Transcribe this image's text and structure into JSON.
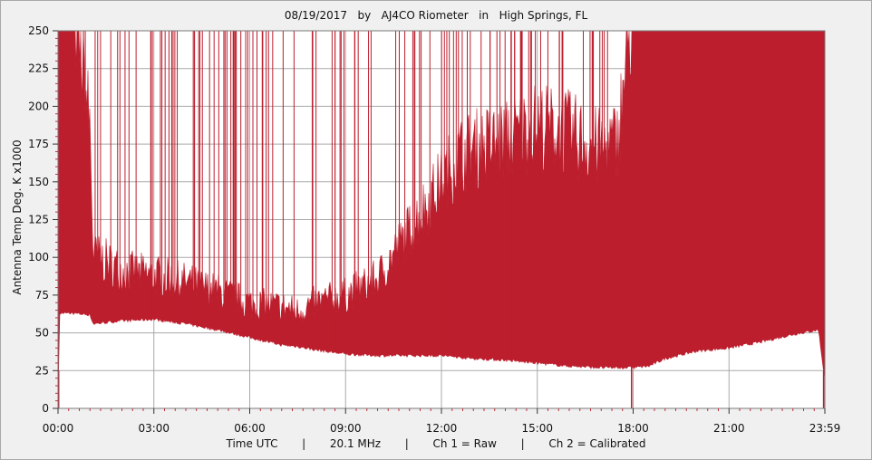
{
  "title": "08/19/2017   by   AJ4CO Riometer   in   High Springs, FL",
  "footer": "Time UTC       |       20.1 MHz       |       Ch 1 = Raw       |       Ch 2 = Calibrated",
  "colors": {
    "series": "#bc1e2d",
    "grid": "#a9a9a9",
    "plot_background": "#ffffff",
    "window": "#f0f0f0",
    "minor_tick": "#c03040"
  },
  "chart_data": {
    "type": "area",
    "title": "08/19/2017   by   AJ4CO Riometer   in   High Springs, FL",
    "xlabel": "Time UTC",
    "ylabel": "Antenna Temp Deg. K x1000",
    "xlim": [
      0,
      24
    ],
    "ylim": [
      0,
      250
    ],
    "x_ticks": [
      "00:00",
      "03:00",
      "06:00",
      "09:00",
      "12:00",
      "15:00",
      "18:00",
      "21:00",
      "23:59"
    ],
    "y_ticks": [
      0,
      25,
      50,
      75,
      100,
      125,
      150,
      175,
      200,
      225,
      250
    ],
    "grid": true,
    "legend": "none",
    "series": [
      {
        "name": "Ch 1 = Raw",
        "x_hours": [
          0,
          0.05,
          0.5,
          1,
          1.1,
          2,
          3,
          4,
          5,
          6,
          7,
          7.5,
          8,
          9,
          10,
          11,
          12,
          12.5,
          13,
          14,
          15,
          16,
          17,
          17.5,
          18,
          18.5,
          19,
          20,
          21,
          22,
          23,
          23.8,
          23.99
        ],
        "lower": [
          0,
          63,
          63,
          62,
          56,
          58,
          59,
          56,
          52,
          47,
          42,
          41,
          39,
          36,
          35,
          35,
          35,
          34,
          33,
          32,
          30,
          28,
          27,
          27,
          27,
          28,
          33,
          38,
          40,
          44,
          49,
          52,
          20
        ],
        "upper": [
          250,
          250,
          250,
          175,
          95,
          85,
          82,
          78,
          72,
          65,
          63,
          60,
          65,
          70,
          80,
          110,
          140,
          155,
          160,
          165,
          175,
          170,
          160,
          165,
          250,
          250,
          250,
          250,
          250,
          250,
          250,
          250,
          250
        ]
      }
    ],
    "annotations": [
      "20.1 MHz",
      "Ch 1 = Raw",
      "Ch 2 = Calibrated"
    ]
  }
}
